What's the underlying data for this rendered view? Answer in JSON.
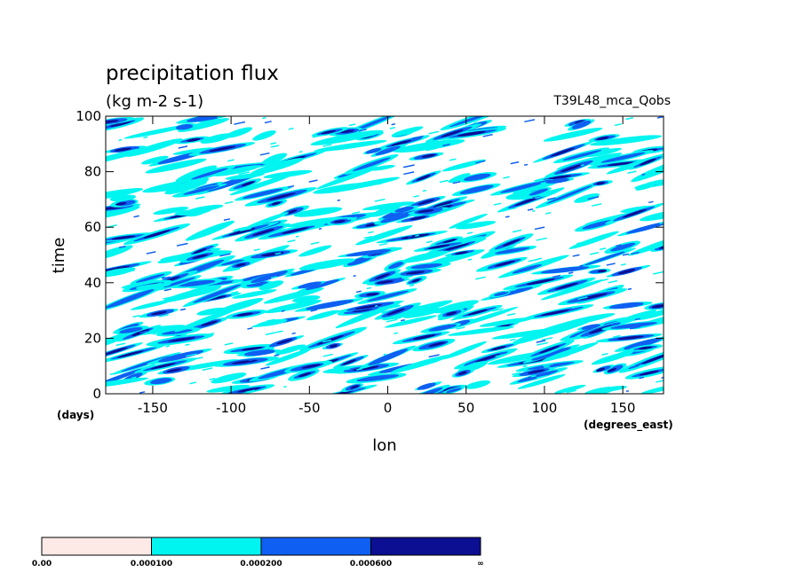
{
  "chart_data": {
    "type": "heatmap",
    "title": "precipitation flux",
    "subtitle": "(kg m-2 s-1)",
    "run_label": "T39L48_mca_Qobs",
    "xlabel": "lon",
    "ylabel": "time",
    "x_units": "(degrees_east)",
    "y_units": "(days)",
    "xlim": [
      -180,
      176
    ],
    "ylim": [
      0,
      100
    ],
    "x_ticks": [
      "-150",
      "-100",
      "-50",
      "0",
      "50",
      "100",
      "150"
    ],
    "x_tick_values": [
      -150,
      -100,
      -50,
      0,
      50,
      100,
      150
    ],
    "y_ticks": [
      "0",
      "20",
      "40",
      "60",
      "80",
      "100"
    ],
    "y_tick_values": [
      0,
      20,
      40,
      60,
      80,
      100
    ],
    "levels": [
      "0.00",
      "0.000100",
      "0.000200",
      "0.000600",
      "∞"
    ],
    "level_colors": [
      "#fde9e6",
      "#00f5f0",
      "#0f5ff2",
      "#0c0f92"
    ]
  }
}
